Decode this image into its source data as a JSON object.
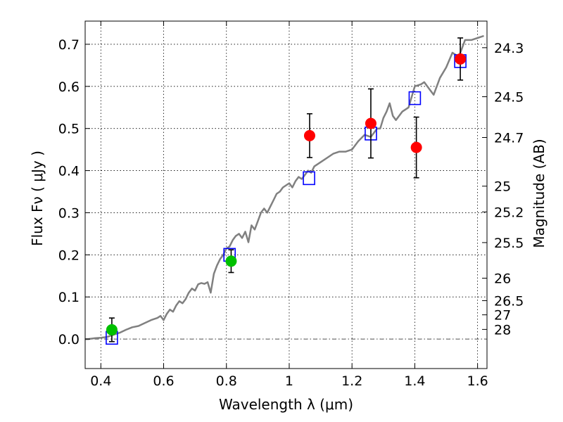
{
  "chart_data": {
    "type": "scatter",
    "title": "",
    "xlabel": "Wavelength  λ (μm)",
    "ylabel": "Flux  Fν  ( μJy )",
    "ylabel_right": "Magnitude (AB)",
    "xlim": [
      0.35,
      1.63
    ],
    "ylim": [
      -0.07,
      0.755
    ],
    "grid": true,
    "grid_style": "dotted",
    "x_ticks": [
      {
        "value": 0.4,
        "label": "0.4"
      },
      {
        "value": 0.6,
        "label": "0.6"
      },
      {
        "value": 0.8,
        "label": "0.8"
      },
      {
        "value": 1.0,
        "label": "1"
      },
      {
        "value": 1.2,
        "label": "1.2"
      },
      {
        "value": 1.4,
        "label": "1.4"
      },
      {
        "value": 1.6,
        "label": "1.6"
      }
    ],
    "y_ticks": [
      {
        "value": 0.0,
        "label": "0.0"
      },
      {
        "value": 0.1,
        "label": "0.1"
      },
      {
        "value": 0.2,
        "label": "0.2"
      },
      {
        "value": 0.3,
        "label": "0.3"
      },
      {
        "value": 0.4,
        "label": "0.4"
      },
      {
        "value": 0.5,
        "label": "0.5"
      },
      {
        "value": 0.6,
        "label": "0.6"
      },
      {
        "value": 0.7,
        "label": "0.7"
      }
    ],
    "right_ticks": [
      {
        "value": 24.3,
        "label": "24.3"
      },
      {
        "value": 24.5,
        "label": "24.5"
      },
      {
        "value": 24.7,
        "label": "24.7"
      },
      {
        "value": 25,
        "label": "25"
      },
      {
        "value": 25.2,
        "label": "25.2"
      },
      {
        "value": 25.5,
        "label": "25.5"
      },
      {
        "value": 26,
        "label": "26"
      },
      {
        "value": 26.5,
        "label": "26.5"
      },
      {
        "value": 27,
        "label": "27"
      },
      {
        "value": 28,
        "label": "28"
      }
    ],
    "baseline": {
      "y": 0.0,
      "style": "dash-dot",
      "color": "#555555"
    },
    "series": [
      {
        "type": "line",
        "color": "#808080",
        "x": [
          0.35,
          0.36,
          0.38,
          0.4,
          0.42,
          0.44,
          0.46,
          0.48,
          0.5,
          0.52,
          0.54,
          0.56,
          0.58,
          0.59,
          0.6,
          0.61,
          0.62,
          0.63,
          0.64,
          0.65,
          0.66,
          0.67,
          0.68,
          0.69,
          0.7,
          0.71,
          0.72,
          0.73,
          0.74,
          0.75,
          0.76,
          0.77,
          0.78,
          0.79,
          0.8,
          0.81,
          0.82,
          0.83,
          0.84,
          0.85,
          0.86,
          0.87,
          0.88,
          0.89,
          0.9,
          0.91,
          0.92,
          0.93,
          0.94,
          0.95,
          0.96,
          0.97,
          0.98,
          0.99,
          1.0,
          1.01,
          1.02,
          1.03,
          1.04,
          1.05,
          1.06,
          1.07,
          1.08,
          1.1,
          1.12,
          1.14,
          1.16,
          1.18,
          1.2,
          1.22,
          1.24,
          1.26,
          1.28,
          1.29,
          1.3,
          1.31,
          1.32,
          1.33,
          1.34,
          1.36,
          1.38,
          1.4,
          1.42,
          1.43,
          1.44,
          1.45,
          1.46,
          1.48,
          1.5,
          1.52,
          1.54,
          1.56,
          1.58,
          1.6,
          1.62
        ],
        "y": [
          0.0,
          0.0,
          0.002,
          0.003,
          0.005,
          0.01,
          0.015,
          0.022,
          0.028,
          0.031,
          0.038,
          0.045,
          0.05,
          0.055,
          0.045,
          0.06,
          0.07,
          0.065,
          0.08,
          0.09,
          0.085,
          0.095,
          0.11,
          0.12,
          0.115,
          0.13,
          0.133,
          0.131,
          0.135,
          0.11,
          0.155,
          0.175,
          0.19,
          0.2,
          0.215,
          0.22,
          0.235,
          0.245,
          0.25,
          0.24,
          0.255,
          0.23,
          0.27,
          0.26,
          0.28,
          0.3,
          0.31,
          0.3,
          0.315,
          0.33,
          0.345,
          0.35,
          0.36,
          0.365,
          0.37,
          0.36,
          0.375,
          0.385,
          0.38,
          0.39,
          0.4,
          0.395,
          0.41,
          0.42,
          0.43,
          0.44,
          0.445,
          0.445,
          0.45,
          0.47,
          0.485,
          0.48,
          0.5,
          0.5,
          0.525,
          0.54,
          0.56,
          0.53,
          0.52,
          0.54,
          0.55,
          0.6,
          0.605,
          0.61,
          0.6,
          0.59,
          0.58,
          0.62,
          0.645,
          0.68,
          0.67,
          0.71,
          0.71,
          0.715,
          0.72
        ]
      },
      {
        "type": "scatter",
        "marker": "square-open",
        "color": "#0000ff",
        "x": [
          0.435,
          0.81,
          1.063,
          1.26,
          1.4,
          1.545
        ],
        "y": [
          0.003,
          0.2,
          0.382,
          0.488,
          0.572,
          0.66
        ]
      },
      {
        "type": "scatter",
        "marker": "circle",
        "color": "#00c000",
        "x": [
          0.435,
          0.815
        ],
        "y": [
          0.022,
          0.185
        ],
        "yerr": [
          0.028,
          0.027
        ]
      },
      {
        "type": "scatter",
        "marker": "circle",
        "color": "#ff0000",
        "x": [
          1.065,
          1.26,
          1.405,
          1.545
        ],
        "y": [
          0.483,
          0.512,
          0.455,
          0.665
        ],
        "yerr": [
          0.052,
          0.082,
          0.072,
          0.05
        ]
      }
    ]
  }
}
